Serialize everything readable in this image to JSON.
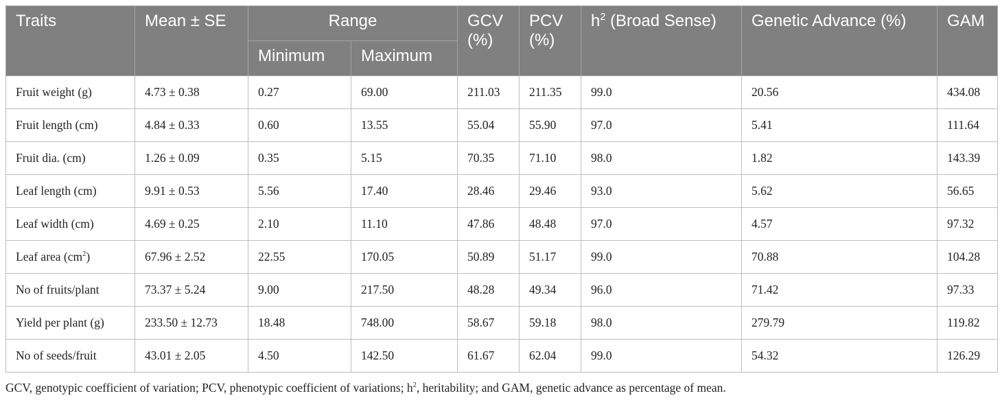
{
  "table": {
    "headers": {
      "traits": "Traits",
      "mean_se": "Mean ± SE",
      "range": "Range",
      "minimum": "Minimum",
      "maximum": "Maximum",
      "gcv": "GCV (%)",
      "pcv": "PCV (%)",
      "h2_base": "h",
      "h2_sup": "2",
      "h2_rest": " (Broad Sense)",
      "genetic_advance": "Genetic Advance (%)",
      "gam": "GAM"
    },
    "rows": [
      {
        "trait": "Fruit weight (g)",
        "trait_sup": "",
        "trait_tail": "",
        "mean_se": "4.73 ± 0.38",
        "min": "0.27",
        "max": "69.00",
        "gcv": "211.03",
        "pcv": "211.35",
        "h2": "99.0",
        "ga": "20.56",
        "gam": "434.08"
      },
      {
        "trait": "Fruit length (cm)",
        "trait_sup": "",
        "trait_tail": "",
        "mean_se": "4.84 ± 0.33",
        "min": "0.60",
        "max": "13.55",
        "gcv": "55.04",
        "pcv": "55.90",
        "h2": "97.0",
        "ga": "5.41",
        "gam": "111.64"
      },
      {
        "trait": "Fruit dia. (cm)",
        "trait_sup": "",
        "trait_tail": "",
        "mean_se": "1.26 ± 0.09",
        "min": "0.35",
        "max": "5.15",
        "gcv": "70.35",
        "pcv": "71.10",
        "h2": "98.0",
        "ga": "1.82",
        "gam": "143.39"
      },
      {
        "trait": "Leaf length (cm)",
        "trait_sup": "",
        "trait_tail": "",
        "mean_se": "9.91 ± 0.53",
        "min": "5.56",
        "max": "17.40",
        "gcv": "28.46",
        "pcv": "29.46",
        "h2": "93.0",
        "ga": "5.62",
        "gam": "56.65"
      },
      {
        "trait": "Leaf width (cm)",
        "trait_sup": "",
        "trait_tail": "",
        "mean_se": "4.69 ± 0.25",
        "min": "2.10",
        "max": "11.10",
        "gcv": "47.86",
        "pcv": "48.48",
        "h2": "97.0",
        "ga": "4.57",
        "gam": "97.32"
      },
      {
        "trait": "Leaf area (cm",
        "trait_sup": "2",
        "trait_tail": ")",
        "mean_se": "67.96 ± 2.52",
        "min": "22.55",
        "max": "170.05",
        "gcv": "50.89",
        "pcv": "51.17",
        "h2": "99.0",
        "ga": "70.88",
        "gam": "104.28"
      },
      {
        "trait": "No of fruits/plant",
        "trait_sup": "",
        "trait_tail": "",
        "mean_se": "73.37 ± 5.24",
        "min": "9.00",
        "max": "217.50",
        "gcv": "48.28",
        "pcv": "49.34",
        "h2": "96.0",
        "ga": "71.42",
        "gam": "97.33"
      },
      {
        "trait": "Yield per plant (g)",
        "trait_sup": "",
        "trait_tail": "",
        "mean_se": "233.50 ± 12.73",
        "min": "18.48",
        "max": "748.00",
        "gcv": "58.67",
        "pcv": "59.18",
        "h2": "98.0",
        "ga": "279.79",
        "gam": "119.82"
      },
      {
        "trait": "No of seeds/fruit",
        "trait_sup": "",
        "trait_tail": "",
        "mean_se": "43.01 ± 2.05",
        "min": "4.50",
        "max": "142.50",
        "gcv": "61.67",
        "pcv": "62.04",
        "h2": "99.0",
        "ga": "54.32",
        "gam": "126.29"
      }
    ]
  },
  "footnote": {
    "part1": "GCV, genotypic coefficient of variation; PCV, phenotypic coefficient of variations; h",
    "sup": "2",
    "part2": ", heritability; and GAM, genetic advance as percentage of mean."
  },
  "colors": {
    "header_bg": "#808080",
    "header_text": "#ffffff",
    "border": "#bdbdbd",
    "body_text": "#222222"
  }
}
